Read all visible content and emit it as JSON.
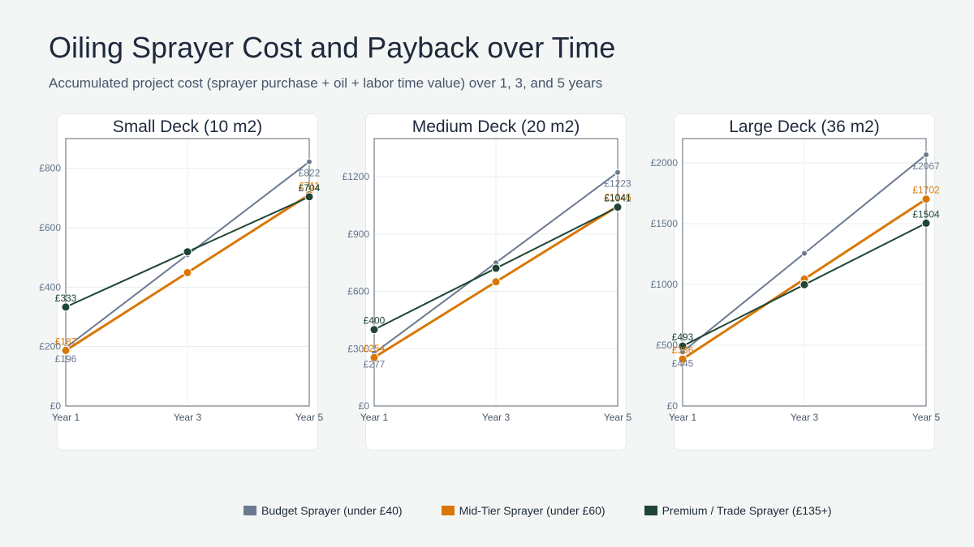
{
  "title": "Oiling Sprayer Cost and Payback over Time",
  "subtitle": "Accumulated project cost (sprayer purchase + oil + labor time value) over 1, 3, and 5 years",
  "series_styles": [
    {
      "name": "Budget Sprayer (under £40)",
      "color": "#6b7a90"
    },
    {
      "name": "Mid-Tier Sprayer (under £60)",
      "color": "#d97706"
    },
    {
      "name": "Premium / Trade Sprayer (£135+)",
      "color": "#1f4536"
    }
  ],
  "chart_data": [
    {
      "type": "line",
      "title": "Small Deck (10 m2)",
      "categories": [
        "Year 1",
        "Year 3",
        "Year 5"
      ],
      "ylim": [
        0,
        900
      ],
      "yticks": [
        0,
        200,
        400,
        600,
        800
      ],
      "ytick_labels": [
        "£0",
        "£200",
        "£400",
        "£600",
        "£800"
      ],
      "series": [
        {
          "name": "Budget Sprayer (under £40)",
          "values": [
            196,
            509,
            822
          ],
          "labels": [
            "£196",
            "",
            "£822"
          ]
        },
        {
          "name": "Mid-Tier Sprayer (under £60)",
          "values": [
            187,
            449,
            711
          ],
          "labels": [
            "£187",
            "",
            "£711"
          ]
        },
        {
          "name": "Premium / Trade Sprayer (£135+)",
          "values": [
            333,
            519,
            704
          ],
          "labels": [
            "£333",
            "",
            "£704"
          ]
        }
      ]
    },
    {
      "type": "line",
      "title": "Medium Deck (20 m2)",
      "categories": [
        "Year 1",
        "Year 3",
        "Year 5"
      ],
      "ylim": [
        0,
        1400
      ],
      "yticks": [
        0,
        300,
        600,
        900,
        1200
      ],
      "ytick_labels": [
        "£0",
        "£300",
        "£600",
        "£900",
        "£1200"
      ],
      "series": [
        {
          "name": "Budget Sprayer (under £40)",
          "values": [
            277,
            750,
            1223
          ],
          "labels": [
            "£277",
            "",
            "£1223"
          ]
        },
        {
          "name": "Mid-Tier Sprayer (under £60)",
          "values": [
            254,
            650,
            1046
          ],
          "labels": [
            "£254",
            "",
            "£1046"
          ]
        },
        {
          "name": "Premium / Trade Sprayer (£135+)",
          "values": [
            400,
            721,
            1041
          ],
          "labels": [
            "£400",
            "",
            "£1041"
          ]
        }
      ]
    },
    {
      "type": "line",
      "title": "Large Deck (36 m2)",
      "categories": [
        "Year 1",
        "Year 3",
        "Year 5"
      ],
      "ylim": [
        0,
        2200
      ],
      "yticks": [
        0,
        500,
        1000,
        1500,
        2000
      ],
      "ytick_labels": [
        "£0",
        "£500",
        "£1000",
        "£1500",
        "£2000"
      ],
      "series": [
        {
          "name": "Budget Sprayer (under £40)",
          "values": [
            445,
            1256,
            2067
          ],
          "labels": [
            "£445",
            "",
            "£2067"
          ]
        },
        {
          "name": "Mid-Tier Sprayer (under £60)",
          "values": [
            386,
            1044,
            1702
          ],
          "labels": [
            "£386",
            "",
            "£1702"
          ]
        },
        {
          "name": "Premium / Trade Sprayer (£135+)",
          "values": [
            493,
            998,
            1504
          ],
          "labels": [
            "£493",
            "",
            "£1504"
          ]
        }
      ]
    }
  ]
}
